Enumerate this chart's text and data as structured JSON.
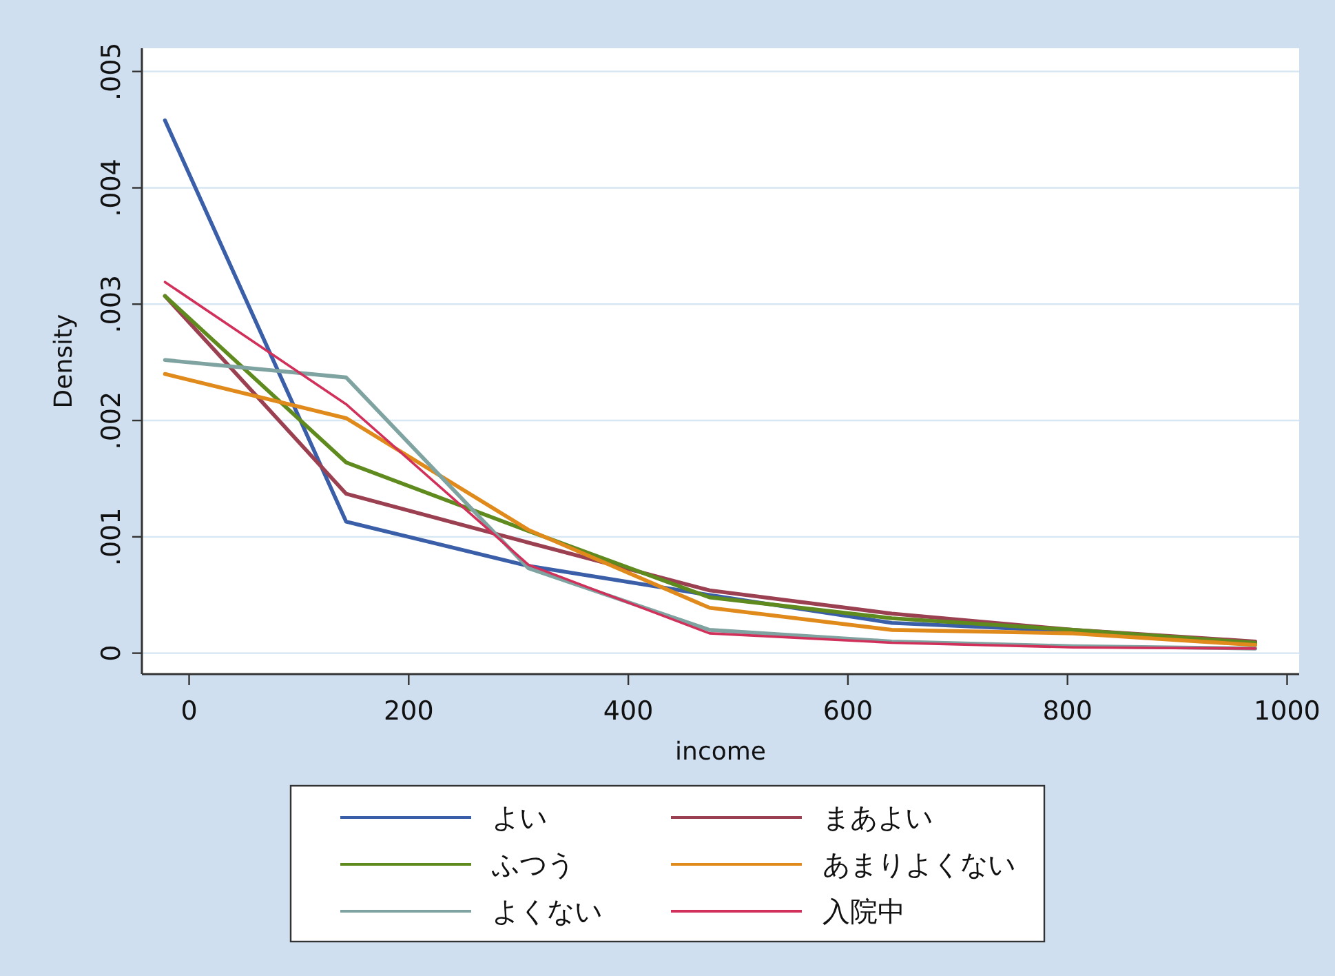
{
  "chart_data": {
    "type": "line",
    "xlabel": "income",
    "ylabel": "Density",
    "x": [
      -22,
      143,
      309,
      474,
      640,
      805,
      971
    ],
    "xlim": [
      -43,
      1011
    ],
    "xticks": [
      0,
      200,
      400,
      600,
      800,
      1000
    ],
    "ylim": [
      -0.00018,
      0.0052
    ],
    "yticks": [
      {
        "value": 0,
        "label": "0"
      },
      {
        "value": 0.001,
        "label": ".001"
      },
      {
        "value": 0.002,
        "label": ".002"
      },
      {
        "value": 0.003,
        "label": ".003"
      },
      {
        "value": 0.004,
        "label": ".004"
      },
      {
        "value": 0.005,
        "label": ".005"
      }
    ],
    "grid": "y",
    "legend": "bottom",
    "marker": "none",
    "line_style": "solid",
    "series": [
      {
        "name": "よい",
        "color": "#3a5fa8",
        "values": [
          0.00458,
          0.00113,
          0.00075,
          0.0005,
          0.00026,
          0.00019,
          9e-05
        ]
      },
      {
        "name": "まあよい",
        "color": "#9b4050",
        "values": [
          0.00307,
          0.00137,
          0.00095,
          0.00054,
          0.00034,
          0.0002,
          0.0001
        ]
      },
      {
        "name": "ふつう",
        "color": "#5f8a1e",
        "values": [
          0.00307,
          0.00164,
          0.00105,
          0.00048,
          0.0003,
          0.0002,
          9e-05
        ]
      },
      {
        "name": "あまりよくない",
        "color": "#e08a1c",
        "values": [
          0.0024,
          0.00202,
          0.00106,
          0.00039,
          0.0002,
          0.00017,
          7e-05
        ]
      },
      {
        "name": "よくない",
        "color": "#7fa3a0",
        "values": [
          0.00252,
          0.00237,
          0.00073,
          0.0002,
          0.0001,
          6e-05,
          4e-05
        ]
      },
      {
        "name": "入院中",
        "color": "#d0305a",
        "values": [
          0.00319,
          0.00214,
          0.00076,
          0.00017,
          9e-05,
          5e-05,
          4e-05
        ]
      }
    ]
  }
}
